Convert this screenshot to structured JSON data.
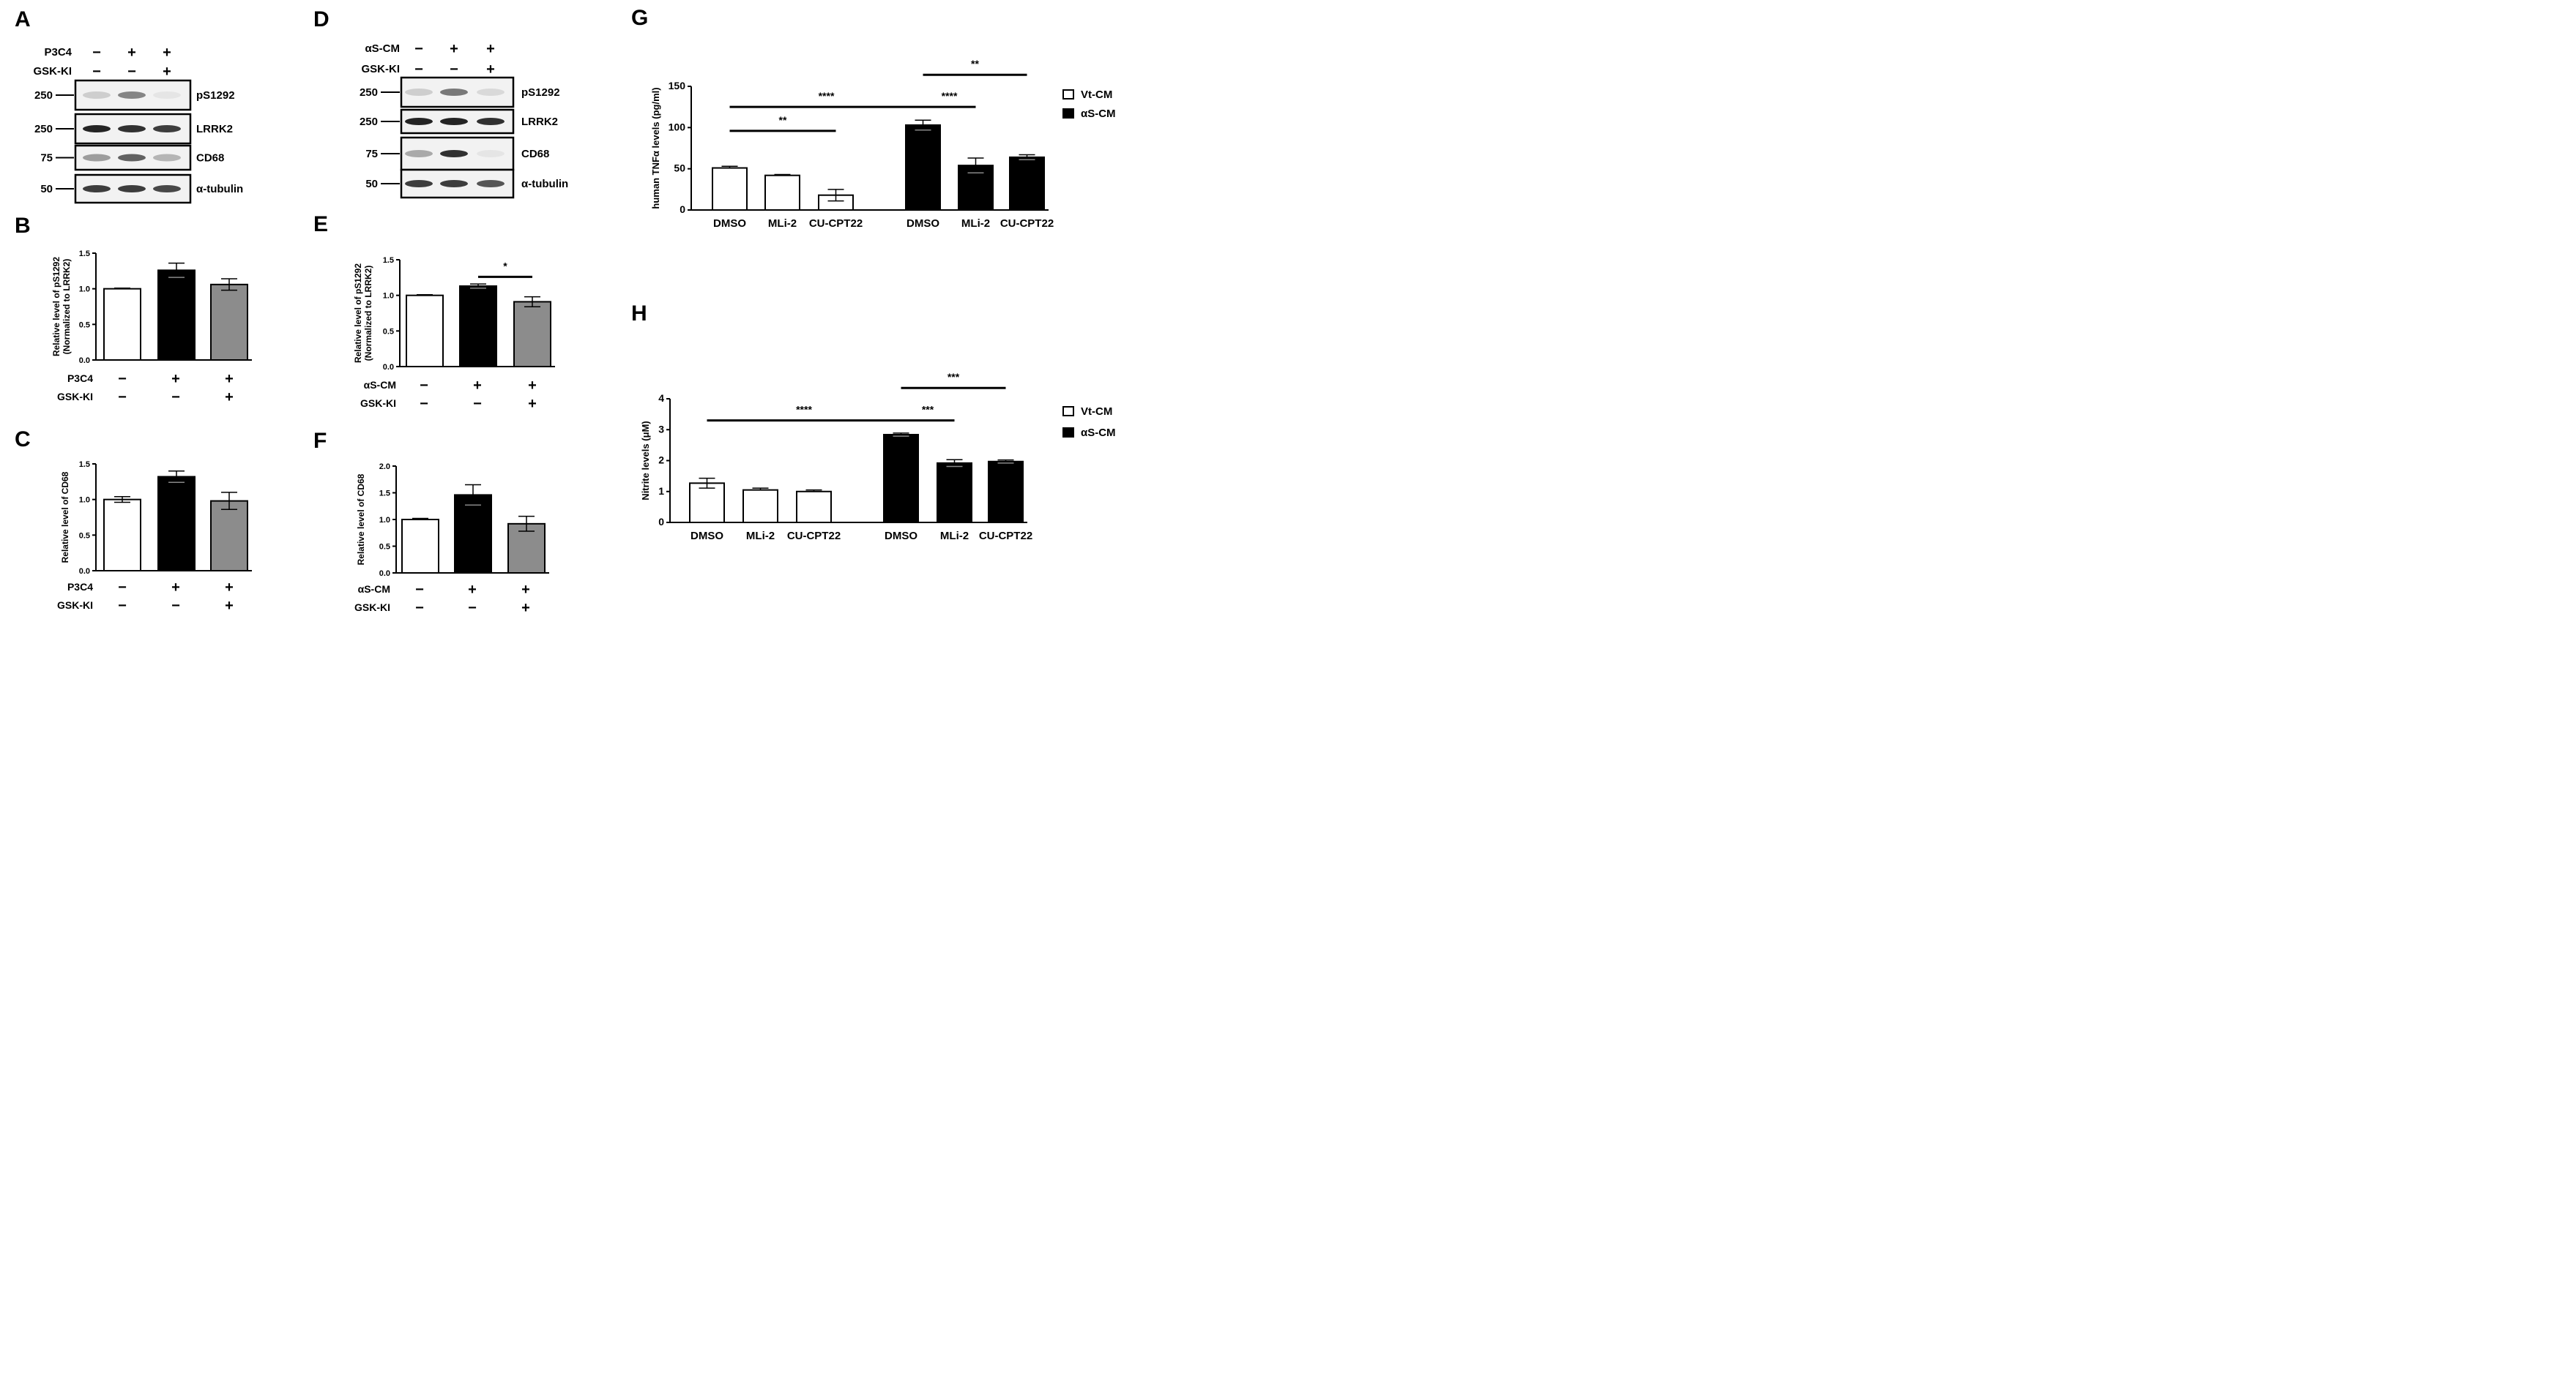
{
  "panels": {
    "A": {
      "label": "A",
      "conditions": [
        {
          "name": "P3C4",
          "signs": [
            "−",
            "+",
            "+"
          ]
        },
        {
          "name": "GSK-KI",
          "signs": [
            "−",
            "−",
            "+"
          ]
        }
      ],
      "blots": [
        {
          "marker": "250",
          "label": "pS1292"
        },
        {
          "marker": "250",
          "label": "LRRK2"
        },
        {
          "marker": "75",
          "label": "CD68"
        },
        {
          "marker": "50",
          "label": "α-tubulin"
        }
      ]
    },
    "D": {
      "label": "D",
      "conditions": [
        {
          "name": "αS-CM",
          "signs": [
            "−",
            "+",
            "+"
          ]
        },
        {
          "name": "GSK-KI",
          "signs": [
            "−",
            "−",
            "+"
          ]
        }
      ],
      "blots": [
        {
          "marker": "250",
          "label": "pS1292"
        },
        {
          "marker": "250",
          "label": "LRRK2"
        },
        {
          "marker": "75",
          "label": "CD68"
        },
        {
          "marker": "50",
          "label": "α-tubulin"
        }
      ]
    }
  },
  "chart_data": [
    {
      "panel": "B",
      "type": "bar",
      "ylabel": [
        "Relative level of pS1292",
        "(Normalized to LRRK2)"
      ],
      "ylim": [
        0,
        1.5
      ],
      "yticks": [
        "0.0",
        "0.5",
        "1.0",
        "1.5"
      ],
      "values": [
        1.0,
        1.26,
        1.06
      ],
      "errors": [
        0.01,
        0.1,
        0.08
      ],
      "colors": [
        "#ffffff",
        "#000000",
        "#8c8c8c"
      ],
      "conditions": [
        {
          "name": "P3C4",
          "signs": [
            "−",
            "+",
            "+"
          ]
        },
        {
          "name": "GSK-KI",
          "signs": [
            "−",
            "−",
            "+"
          ]
        }
      ],
      "significance": []
    },
    {
      "panel": "C",
      "type": "bar",
      "ylabel": [
        "Relative level of CD68"
      ],
      "ylim": [
        0,
        1.5
      ],
      "yticks": [
        "0.0",
        "0.5",
        "1.0",
        "1.5"
      ],
      "values": [
        1.0,
        1.32,
        0.98
      ],
      "errors": [
        0.04,
        0.08,
        0.12
      ],
      "colors": [
        "#ffffff",
        "#000000",
        "#8c8c8c"
      ],
      "conditions": [
        {
          "name": "P3C4",
          "signs": [
            "−",
            "+",
            "+"
          ]
        },
        {
          "name": "GSK-KI",
          "signs": [
            "−",
            "−",
            "+"
          ]
        }
      ],
      "significance": []
    },
    {
      "panel": "E",
      "type": "bar",
      "ylabel": [
        "Relative level of pS1292",
        "(Normalized to LRRK2)"
      ],
      "ylim": [
        0,
        1.5
      ],
      "yticks": [
        "0.0",
        "0.5",
        "1.0",
        "1.5"
      ],
      "values": [
        1.0,
        1.13,
        0.91
      ],
      "errors": [
        0.01,
        0.03,
        0.07
      ],
      "colors": [
        "#ffffff",
        "#000000",
        "#8c8c8c"
      ],
      "conditions": [
        {
          "name": "αS-CM",
          "signs": [
            "−",
            "+",
            "+"
          ]
        },
        {
          "name": "GSK-KI",
          "signs": [
            "−",
            "−",
            "+"
          ]
        }
      ],
      "significance": [
        {
          "from": 1,
          "to": 2,
          "label": "*",
          "y": 1.26
        }
      ]
    },
    {
      "panel": "F",
      "type": "bar",
      "ylabel": [
        "Relative level of CD68"
      ],
      "ylim": [
        0,
        2.0
      ],
      "yticks": [
        "0.0",
        "0.5",
        "1.0",
        "1.5",
        "2.0"
      ],
      "values": [
        1.0,
        1.46,
        0.92
      ],
      "errors": [
        0.02,
        0.19,
        0.14
      ],
      "colors": [
        "#ffffff",
        "#000000",
        "#8c8c8c"
      ],
      "conditions": [
        {
          "name": "αS-CM",
          "signs": [
            "−",
            "+",
            "+"
          ]
        },
        {
          "name": "GSK-KI",
          "signs": [
            "−",
            "−",
            "+"
          ]
        }
      ],
      "significance": []
    },
    {
      "panel": "G",
      "type": "bar",
      "ylabel": [
        "human TNFα levels (pg/ml)"
      ],
      "ylim": [
        0,
        150
      ],
      "yticks": [
        "0",
        "50",
        "100",
        "150"
      ],
      "categories": [
        "DMSO",
        "MLi-2",
        "CU-CPT22",
        "DMSO",
        "MLi-2",
        "CU-CPT22"
      ],
      "groups": [
        0,
        0,
        0,
        1,
        1,
        1
      ],
      "values": [
        51,
        42,
        18,
        103,
        54,
        64
      ],
      "errors": [
        2,
        1,
        7,
        6,
        9,
        3
      ],
      "colors": [
        "#ffffff",
        "#ffffff",
        "#ffffff",
        "#000000",
        "#000000",
        "#000000"
      ],
      "legend": [
        {
          "name": "Vt-CM",
          "color": "#ffffff"
        },
        {
          "name": "αS-CM",
          "color": "#000000"
        }
      ],
      "significance": [
        {
          "from": 0,
          "to": 2,
          "label": "**",
          "y": 96
        },
        {
          "from": 0,
          "to": 3,
          "label": "****",
          "y": 125
        },
        {
          "from": 3,
          "to": 4,
          "label": "****",
          "y": 125
        },
        {
          "from": 3,
          "to": 5,
          "label": "**",
          "y": 164
        }
      ]
    },
    {
      "panel": "H",
      "type": "bar",
      "ylabel": [
        "Nitrite levels (μM)"
      ],
      "ylim": [
        0,
        4
      ],
      "yticks": [
        "0",
        "1",
        "2",
        "3",
        "4"
      ],
      "categories": [
        "DMSO",
        "MLi-2",
        "CU-CPT22",
        "DMSO",
        "MLi-2",
        "CU-CPT22"
      ],
      "groups": [
        0,
        0,
        0,
        1,
        1,
        1
      ],
      "values": [
        1.27,
        1.05,
        1.0,
        2.84,
        1.92,
        1.97
      ],
      "errors": [
        0.16,
        0.06,
        0.05,
        0.05,
        0.11,
        0.05
      ],
      "colors": [
        "#ffffff",
        "#ffffff",
        "#ffffff",
        "#000000",
        "#000000",
        "#000000"
      ],
      "legend": [
        {
          "name": "Vt-CM",
          "color": "#ffffff"
        },
        {
          "name": "αS-CM",
          "color": "#000000"
        }
      ],
      "significance": [
        {
          "from": 0,
          "to": 3,
          "label": "****",
          "y": 3.3
        },
        {
          "from": 3,
          "to": 4,
          "label": "***",
          "y": 3.3
        },
        {
          "from": 3,
          "to": 5,
          "label": "***",
          "y": 4.35
        }
      ]
    }
  ]
}
